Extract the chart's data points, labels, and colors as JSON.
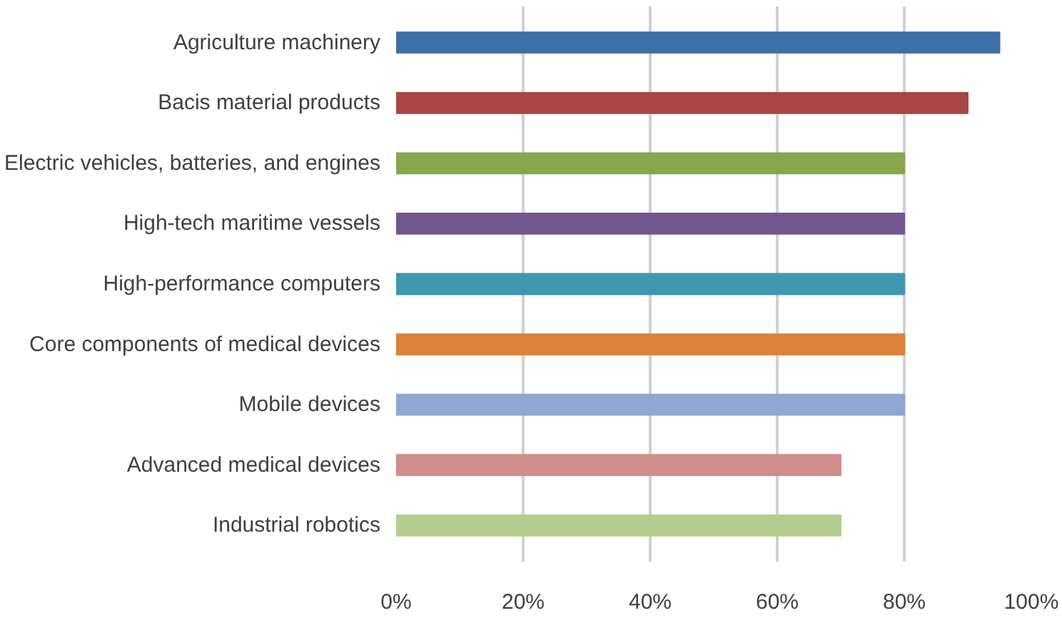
{
  "chart_data": {
    "type": "bar",
    "orientation": "horizontal",
    "categories": [
      "Agriculture machinery",
      "Bacis material products",
      "Electric vehicles, batteries, and engines",
      "High-tech maritime vessels",
      "High-performance computers",
      "Core components of medical devices",
      "Mobile devices",
      "Advanced medical devices",
      "Industrial robotics"
    ],
    "values": [
      95,
      90,
      80,
      80,
      80,
      80,
      80,
      70,
      70
    ],
    "colors": [
      "#3e6fa8",
      "#ab4544",
      "#88a64a",
      "#715690",
      "#3d98b0",
      "#dc8139",
      "#8ea8d2",
      "#d08d8c",
      "#b4cd8f"
    ],
    "xlim": [
      0,
      100
    ],
    "xticks": [
      {
        "value": 0,
        "label": "0%"
      },
      {
        "value": 20,
        "label": "20%"
      },
      {
        "value": 40,
        "label": "40%"
      },
      {
        "value": 60,
        "label": "60%"
      },
      {
        "value": 80,
        "label": "80%"
      },
      {
        "value": 100,
        "label": "100%"
      }
    ],
    "grid": "x"
  }
}
